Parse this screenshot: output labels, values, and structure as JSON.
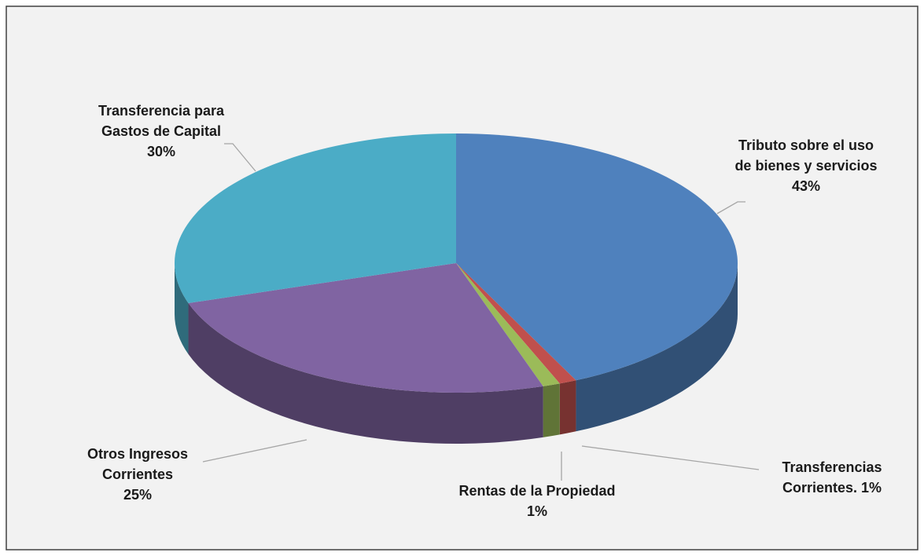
{
  "chart_data": {
    "type": "pie3d",
    "categories": [
      "Tributo sobre el uso de bienes y servicios",
      "Transferencias Corrientes.",
      "Rentas de la Propiedad",
      "Otros Ingresos Corrientes",
      "Transferencia para Gastos de Capital"
    ],
    "values": [
      43,
      1,
      1,
      25,
      30
    ],
    "value_labels": [
      "43%",
      "1%",
      "1%",
      "25%",
      "30%"
    ],
    "colors": [
      "#4f81bd",
      "#c0504d",
      "#9bbb59",
      "#8064a2",
      "#4bacc6"
    ]
  }
}
